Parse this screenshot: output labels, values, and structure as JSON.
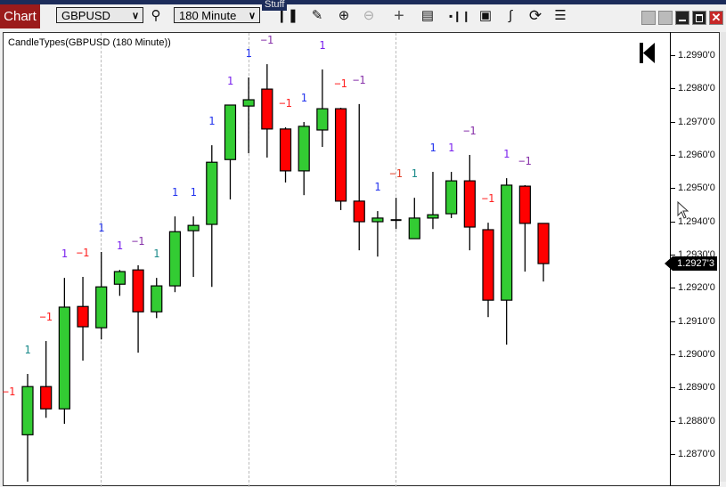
{
  "window": {
    "stripe_text": "Stuff",
    "tab_label": "Chart"
  },
  "toolbar": {
    "instrument": "GBPUSD",
    "interval": "180 Minute",
    "icons": [
      "search-icon",
      "bar-type-icon",
      "pencil-icon",
      "zoom-in-icon",
      "zoom-out-icon",
      "crosshair-icon",
      "data-box-icon",
      "volume-icon",
      "fill-icon",
      "strategy-icon",
      "reload-icon",
      "indicator-list-icon"
    ],
    "window_controls": [
      "gray-button",
      "gray-button",
      "minimize-icon",
      "maximize-icon",
      "close-icon"
    ]
  },
  "chart": {
    "indicator_title": "CandleTypes(GBPUSD (180 Minute))",
    "last_price_label": "1.2927'3",
    "colors": {
      "up": "#33cc33",
      "down": "#ff0000",
      "doji": "#000000"
    }
  },
  "chart_data": {
    "type": "candlestick",
    "ylim": [
      1.2864,
      1.3009
    ],
    "yticks": [
      "1.2990'0",
      "1.2980'0",
      "1.2970'0",
      "1.2960'0",
      "1.2950'0",
      "1.2940'0",
      "1.2930'0",
      "1.2920'0",
      "1.2910'0",
      "1.2900'0",
      "1.2890'0",
      "1.2880'0",
      "1.2870'0"
    ],
    "ytick_values": [
      1.299,
      1.298,
      1.297,
      1.296,
      1.295,
      1.294,
      1.293,
      1.292,
      1.291,
      1.29,
      1.289,
      1.288,
      1.287
    ],
    "leading_label": {
      "text": "−1",
      "color": "#ff2020"
    },
    "candles": [
      {
        "o": 1.28758,
        "h": 1.28941,
        "l": 1.28606,
        "c": 1.28903,
        "label": "1",
        "lc": "#1a8a8a"
      },
      {
        "o": 1.28903,
        "h": 1.2904,
        "l": 1.28809,
        "c": 1.28836,
        "label": "−1",
        "lc": "#ff2020"
      },
      {
        "o": 1.28836,
        "h": 1.2923,
        "l": 1.28791,
        "c": 1.29142,
        "label": "1",
        "lc": "#7a22ee"
      },
      {
        "o": 1.29144,
        "h": 1.29233,
        "l": 1.28981,
        "c": 1.29083,
        "label": "−1",
        "lc": "#ff2020"
      },
      {
        "o": 1.2908,
        "h": 1.29308,
        "l": 1.29045,
        "c": 1.29203,
        "label": "1",
        "lc": "#2233ee"
      },
      {
        "o": 1.29211,
        "h": 1.29254,
        "l": 1.29176,
        "c": 1.29249,
        "label": "1",
        "lc": "#7a22ee"
      },
      {
        "o": 1.29254,
        "h": 1.29268,
        "l": 1.29005,
        "c": 1.29128,
        "label": "−1",
        "lc": "#8833aa"
      },
      {
        "o": 1.29128,
        "h": 1.2923,
        "l": 1.29109,
        "c": 1.29206,
        "label": "1",
        "lc": "#1a8a8a"
      },
      {
        "o": 1.29206,
        "h": 1.29415,
        "l": 1.29187,
        "c": 1.29369,
        "label": "1",
        "lc": "#2233ee"
      },
      {
        "o": 1.29372,
        "h": 1.29415,
        "l": 1.29233,
        "c": 1.29388,
        "label": "1",
        "lc": "#2233ee"
      },
      {
        "o": 1.29391,
        "h": 1.29629,
        "l": 1.29203,
        "c": 1.29578,
        "label": "1",
        "lc": "#2233ee"
      },
      {
        "o": 1.29586,
        "h": 1.2975,
        "l": 1.29466,
        "c": 1.2975,
        "label": "1",
        "lc": "#7a22ee"
      },
      {
        "o": 1.29747,
        "h": 1.29833,
        "l": 1.29605,
        "c": 1.29766,
        "label": "1",
        "lc": "#2233ee"
      },
      {
        "o": 1.29798,
        "h": 1.29873,
        "l": 1.29592,
        "c": 1.29678,
        "label": "−1",
        "lc": "#8833aa"
      },
      {
        "o": 1.29678,
        "h": 1.29683,
        "l": 1.29517,
        "c": 1.29552,
        "label": "−1",
        "lc": "#ff2020"
      },
      {
        "o": 1.29552,
        "h": 1.29699,
        "l": 1.29479,
        "c": 1.29686,
        "label": "1",
        "lc": "#2233ee"
      },
      {
        "o": 1.29675,
        "h": 1.29857,
        "l": 1.29624,
        "c": 1.29739,
        "label": "1",
        "lc": "#7a22ee"
      },
      {
        "o": 1.29739,
        "h": 1.29742,
        "l": 1.29434,
        "c": 1.29461,
        "label": "−1",
        "lc": "#ff2020"
      },
      {
        "o": 1.29461,
        "h": 1.29753,
        "l": 1.29313,
        "c": 1.29399,
        "label": "−1",
        "lc": "#8833aa"
      },
      {
        "o": 1.29399,
        "h": 1.29431,
        "l": 1.29294,
        "c": 1.2941,
        "label": "1",
        "lc": "#2233ee"
      },
      {
        "o": 1.29404,
        "h": 1.29471,
        "l": 1.29377,
        "c": 1.29404,
        "label": "−1",
        "lc": "#e0402a"
      },
      {
        "o": 1.29348,
        "h": 1.29471,
        "l": 1.29348,
        "c": 1.2941,
        "label": "1",
        "lc": "#1a8a8a"
      },
      {
        "o": 1.2941,
        "h": 1.29549,
        "l": 1.29377,
        "c": 1.2942,
        "label": "1",
        "lc": "#2233ee"
      },
      {
        "o": 1.29423,
        "h": 1.29549,
        "l": 1.2941,
        "c": 1.29522,
        "label": "1",
        "lc": "#7a22ee"
      },
      {
        "o": 1.29522,
        "h": 1.296,
        "l": 1.29313,
        "c": 1.29383,
        "label": "−1",
        "lc": "#8833aa"
      },
      {
        "o": 1.29375,
        "h": 1.29396,
        "l": 1.29112,
        "c": 1.29163,
        "label": "−1",
        "lc": "#ff2020"
      },
      {
        "o": 1.29163,
        "h": 1.2953,
        "l": 1.29029,
        "c": 1.29509,
        "label": "1",
        "lc": "#7a22ee"
      },
      {
        "o": 1.29506,
        "h": 1.29509,
        "l": 1.29249,
        "c": 1.29394,
        "label": "−1",
        "lc": "#8833aa"
      },
      {
        "o": 1.29394,
        "h": 1.29394,
        "l": 1.29219,
        "c": 1.29273,
        "label": null,
        "lc": null
      }
    ]
  }
}
